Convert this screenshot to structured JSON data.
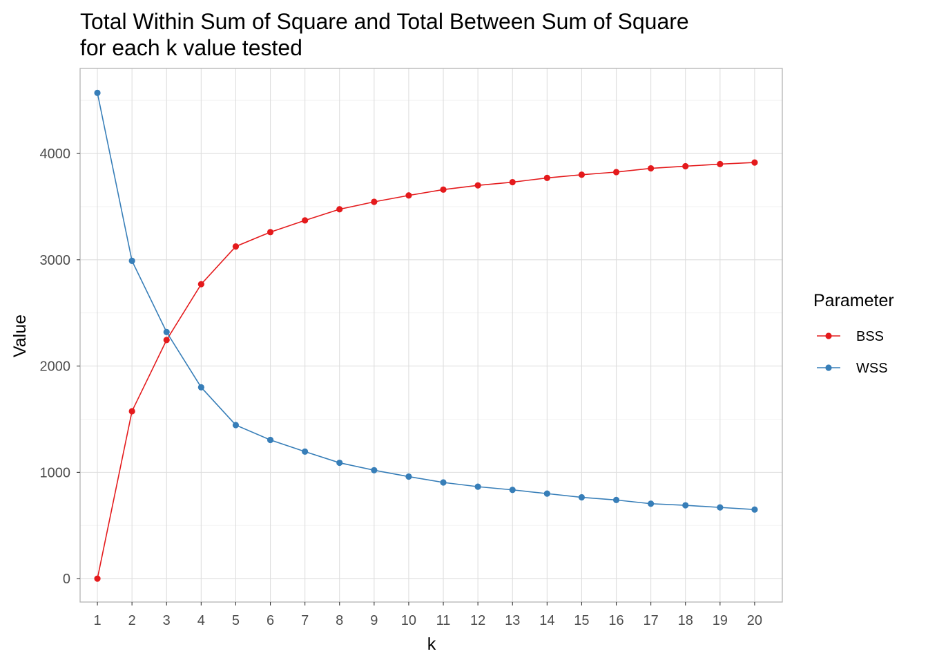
{
  "chart_data": {
    "type": "line",
    "title_line1": "Total Within Sum of Square and Total Between Sum of Square",
    "title_line2": "for each k value tested",
    "xlabel": "k",
    "ylabel": "Value",
    "x": [
      1,
      2,
      3,
      4,
      5,
      6,
      7,
      8,
      9,
      10,
      11,
      12,
      13,
      14,
      15,
      16,
      17,
      18,
      19,
      20
    ],
    "xlim": [
      0.5,
      20.8
    ],
    "ylim": [
      -220,
      4800
    ],
    "yticks": [
      0,
      1000,
      2000,
      3000,
      4000
    ],
    "grid": true,
    "legend": {
      "title": "Parameter",
      "position": "right"
    },
    "series": [
      {
        "name": "BSS",
        "color": "#e41a1c",
        "values": [
          0,
          1575,
          2245,
          2770,
          3125,
          3260,
          3370,
          3475,
          3545,
          3605,
          3660,
          3700,
          3730,
          3770,
          3800,
          3825,
          3860,
          3880,
          3900,
          3915
        ]
      },
      {
        "name": "WSS",
        "color": "#377eb8",
        "values": [
          4570,
          2990,
          2320,
          1800,
          1445,
          1305,
          1195,
          1090,
          1020,
          960,
          905,
          865,
          835,
          800,
          765,
          740,
          705,
          690,
          670,
          650
        ]
      }
    ]
  }
}
